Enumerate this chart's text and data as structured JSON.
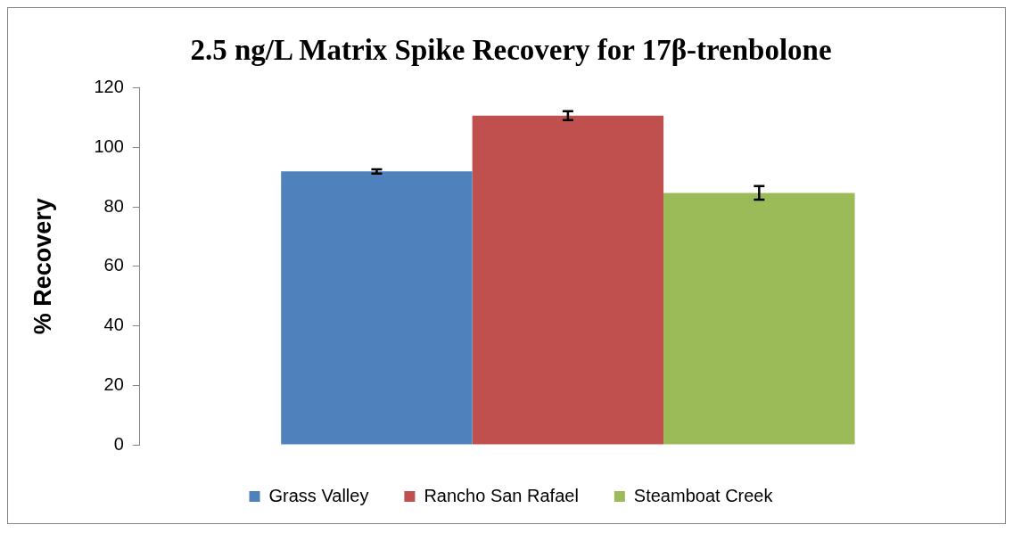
{
  "chart_data": {
    "type": "bar",
    "title": "2.5 ng/L Matrix Spike Recovery for 17β-trenbolone",
    "ylabel": "% Recovery",
    "categories": [
      null
    ],
    "series": [
      {
        "name": "Grass Valley",
        "color": "#4f81bd",
        "values": [
          91.9
        ],
        "errors": [
          0.7
        ]
      },
      {
        "name": "Rancho San Rafael",
        "color": "#c0504d",
        "values": [
          110.7
        ],
        "errors": [
          1.5
        ]
      },
      {
        "name": "Steamboat Creek",
        "color": "#9bbb59",
        "values": [
          84.7
        ],
        "errors": [
          2.3
        ]
      }
    ],
    "ylim": [
      0,
      120
    ],
    "yticks": [
      0,
      20,
      40,
      60,
      80,
      100,
      120
    ],
    "grid": false,
    "legend": "bottom"
  }
}
